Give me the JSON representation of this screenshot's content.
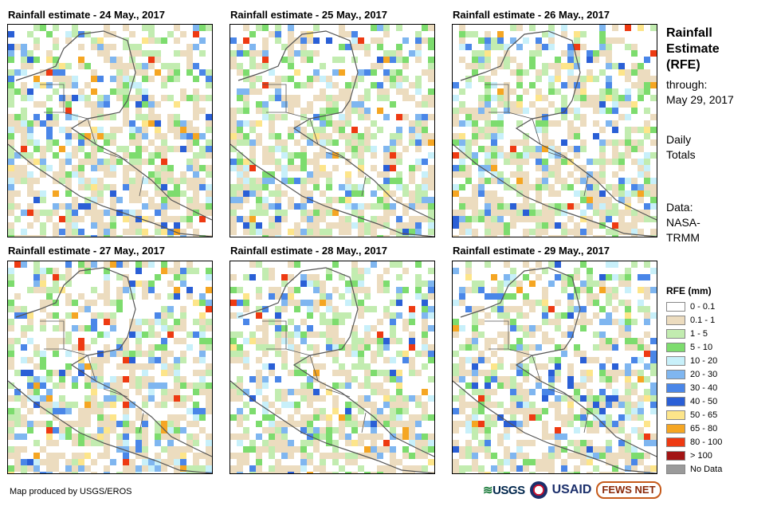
{
  "panels": [
    {
      "title": "Rainfall estimate - 24 May., 2017",
      "seed": 11,
      "day": 24
    },
    {
      "title": "Rainfall estimate - 25 May., 2017",
      "seed": 23,
      "day": 25
    },
    {
      "title": "Rainfall estimate - 26 May., 2017",
      "seed": 37,
      "day": 26
    },
    {
      "title": "Rainfall estimate - 27 May., 2017",
      "seed": 41,
      "day": 27
    },
    {
      "title": "Rainfall estimate - 28 May., 2017",
      "seed": 53,
      "day": 28
    },
    {
      "title": "Rainfall estimate - 29 May., 2017",
      "seed": 67,
      "day": 29
    }
  ],
  "sidebar": {
    "title_line1": "Rainfall",
    "title_line2": "Estimate",
    "title_line3": "(RFE)",
    "through_label": "through:",
    "through_date": "May 29, 2017",
    "totals_line1": "Daily",
    "totals_line2": "Totals",
    "data_label": "Data:",
    "data_source_line1": "NASA-",
    "data_source_line2": "TRMM"
  },
  "legend": {
    "title": "RFE (mm)",
    "items": [
      {
        "label": "0 - 0.1",
        "color": "#ffffff"
      },
      {
        "label": "0.1 - 1",
        "color": "#ecdcbf"
      },
      {
        "label": "1 - 5",
        "color": "#c2ecb0"
      },
      {
        "label": "5 - 10",
        "color": "#7ddc6e"
      },
      {
        "label": "10 - 20",
        "color": "#c8f0fa"
      },
      {
        "label": "20 - 30",
        "color": "#7fb6f0"
      },
      {
        "label": "30 - 40",
        "color": "#4a86e8"
      },
      {
        "label": "40 - 50",
        "color": "#2a5fd6"
      },
      {
        "label": "50 - 65",
        "color": "#fde58a"
      },
      {
        "label": "65 - 80",
        "color": "#f5a623"
      },
      {
        "label": "80 - 100",
        "color": "#ee3a12"
      },
      {
        "label": "> 100",
        "color": "#a31515"
      },
      {
        "label": "No Data",
        "color": "#9a9a9a"
      }
    ]
  },
  "footer": {
    "credit": "Map produced by USGS/EROS",
    "logo_usgs": "USGS",
    "logo_usaid": "USAID",
    "logo_fews": "FEWS NET"
  }
}
